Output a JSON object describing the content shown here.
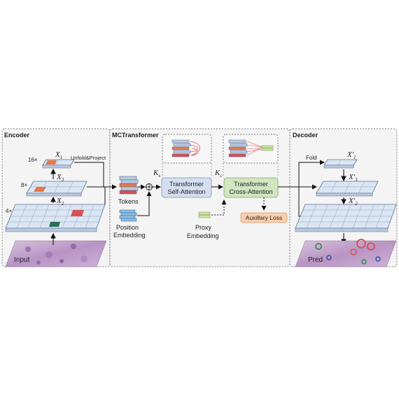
{
  "sections": {
    "encoder": "Encoder",
    "mctransformer": "MCTransformer",
    "decoder": "Decoder"
  },
  "encoder": {
    "input_label": "Input",
    "scale_16": "16×",
    "scale_8": "8×",
    "scale_4": "4×",
    "x1": "X",
    "x1_sub": "1",
    "x3": "X",
    "x3_sub": "3",
    "x2": "X",
    "x2_sub": "2",
    "unfold_label": "Unfold&Project"
  },
  "transformer": {
    "tokens_label": "Tokens",
    "position_label_1": "Position",
    "position_label_2": "Embedding",
    "ks": "K",
    "ks_sub": "s",
    "kc": "K",
    "kc_sub": "c",
    "self_attn_1": "Transformer",
    "self_attn_2": "Self-Attention",
    "cross_attn_1": "Transformer",
    "cross_attn_2": "Cross-Attention",
    "proxy_1": "Proxy",
    "proxy_2": "Embedding",
    "aux_loss": "Auxillary Loss"
  },
  "decoder": {
    "fold_label": "Fold",
    "x1p": "X′",
    "x1p_sub": "1",
    "x3p": "X′",
    "x3p_sub": "3",
    "x2p": "X′",
    "x2p_sub": "2",
    "pred_label": "Pred"
  },
  "colors": {
    "panel_bg": "#f4f4f4",
    "grid_fill": "#dbe6f5",
    "grid_stroke": "#5a6f8c",
    "self_attn_fill": "#d5def0",
    "cross_attn_fill": "#cfe6c0",
    "aux_fill": "#f8cfae",
    "orange_patch": "#e8774a",
    "red_patch": "#d94f4f",
    "green_patch": "#2a6e5a",
    "tissue": "#c2a4cc"
  }
}
